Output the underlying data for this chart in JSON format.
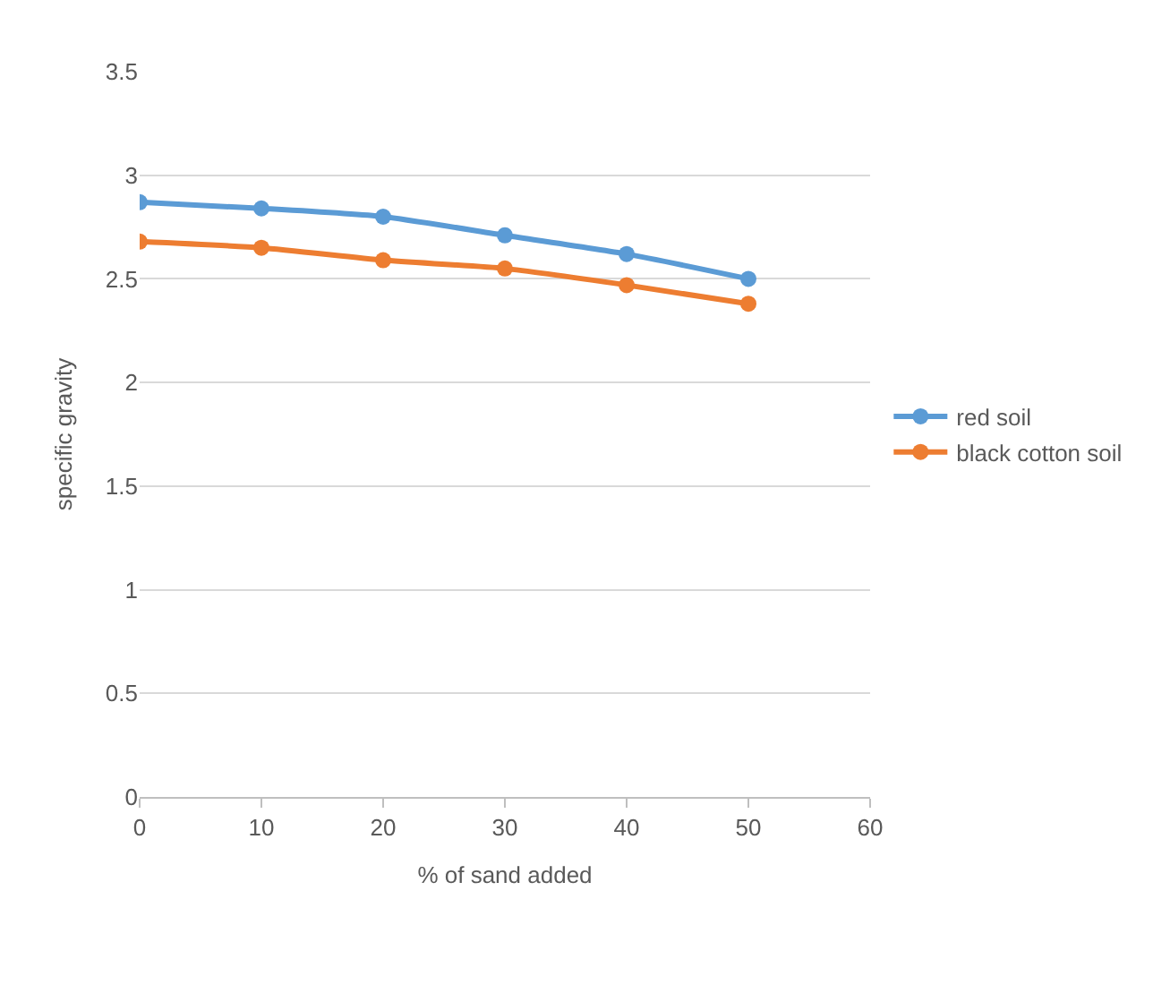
{
  "chart_data": {
    "type": "line",
    "xlabel": "% of sand added",
    "ylabel": "specific gravity",
    "x": [
      0,
      10,
      20,
      30,
      40,
      50
    ],
    "series": [
      {
        "name": "red soil",
        "color": "#5b9bd5",
        "values": [
          2.87,
          2.84,
          2.8,
          2.71,
          2.62,
          2.5
        ]
      },
      {
        "name": "black cotton soil",
        "color": "#ed7d31",
        "values": [
          2.68,
          2.65,
          2.59,
          2.55,
          2.47,
          2.38
        ]
      }
    ],
    "xlim": [
      0,
      60
    ],
    "xticks": [
      0,
      10,
      20,
      30,
      40,
      50,
      60
    ],
    "ylim": [
      0,
      3.5
    ],
    "yticks": [
      {
        "value": 0,
        "label": "0"
      },
      0.5,
      1,
      1.5,
      2,
      2.5,
      3,
      3.5
    ],
    "grid": "y",
    "legend": "right",
    "marker": "circle",
    "line_style": "solid"
  }
}
